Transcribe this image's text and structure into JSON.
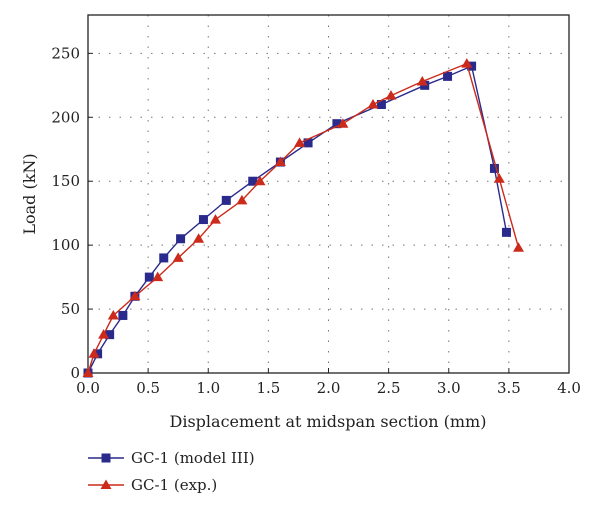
{
  "chart_data": {
    "type": "line",
    "title": "",
    "xlabel": "Displacement at midspan section (mm)",
    "ylabel": "Load (kN)",
    "xlim": [
      0,
      4
    ],
    "ylim": [
      0,
      280
    ],
    "xticks": [
      "0.0",
      "0.5",
      "1.0",
      "1.5",
      "2.0",
      "2.5",
      "3.0",
      "3.5",
      "4.0"
    ],
    "xtick_values": [
      0,
      0.5,
      1,
      1.5,
      2,
      2.5,
      3,
      3.5,
      4
    ],
    "yticks": [
      "0",
      "50",
      "100",
      "150",
      "200",
      "250"
    ],
    "ytick_values": [
      0,
      50,
      100,
      150,
      200,
      250
    ],
    "grid": true,
    "legend_position": "bottom-left, below plot",
    "series": [
      {
        "name": "GC-1 (model III)",
        "color": "#2a2a8c",
        "marker": "square",
        "x": [
          0.0,
          0.08,
          0.18,
          0.29,
          0.39,
          0.51,
          0.63,
          0.77,
          0.96,
          1.15,
          1.37,
          1.6,
          1.83,
          2.07,
          2.44,
          2.8,
          2.99,
          3.19,
          3.38,
          3.48
        ],
        "y": [
          0,
          15,
          30,
          45,
          60,
          75,
          90,
          105,
          120,
          135,
          150,
          165,
          180,
          195,
          210,
          225,
          232,
          240,
          160,
          110
        ]
      },
      {
        "name": "GC-1 (exp.)",
        "color": "#cc2a1a",
        "marker": "triangle",
        "x": [
          0.0,
          0.05,
          0.13,
          0.21,
          0.39,
          0.58,
          0.75,
          0.92,
          1.06,
          1.28,
          1.43,
          1.6,
          1.76,
          2.12,
          2.37,
          2.52,
          2.78,
          3.15,
          3.42,
          3.58
        ],
        "y": [
          0,
          15,
          30,
          45,
          60,
          75,
          90,
          105,
          120,
          135,
          150,
          165,
          180,
          195,
          210,
          217,
          228,
          242,
          152,
          98
        ]
      }
    ]
  }
}
